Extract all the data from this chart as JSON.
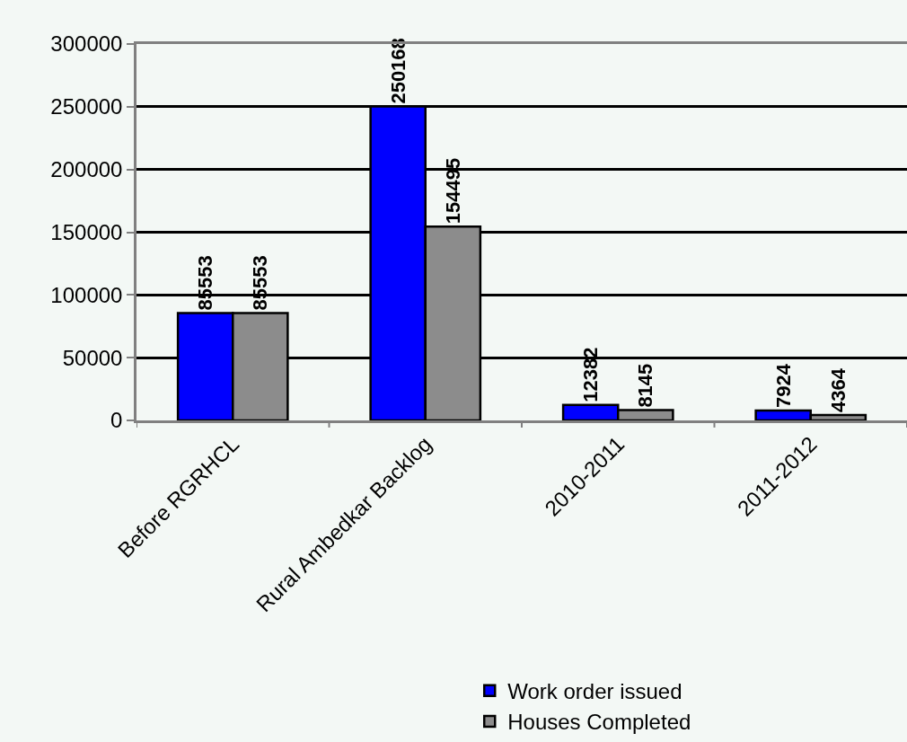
{
  "chart_data": {
    "type": "bar",
    "categories": [
      "Before RGRHCL",
      "Rural Ambedkar Backlog",
      "2010-2011",
      "2011-2012"
    ],
    "series": [
      {
        "name": "Work order issued",
        "color": "#0000ff",
        "values": [
          85553,
          250168,
          12382,
          7924
        ]
      },
      {
        "name": "Houses Completed",
        "color": "#8c8c8c",
        "values": [
          85553,
          154495,
          8145,
          4364
        ]
      }
    ],
    "ylim": [
      0,
      300000
    ],
    "yticks": [
      0,
      50000,
      100000,
      150000,
      200000,
      250000,
      300000
    ],
    "grid": "y",
    "legend": "bottom",
    "data_labels": true
  }
}
